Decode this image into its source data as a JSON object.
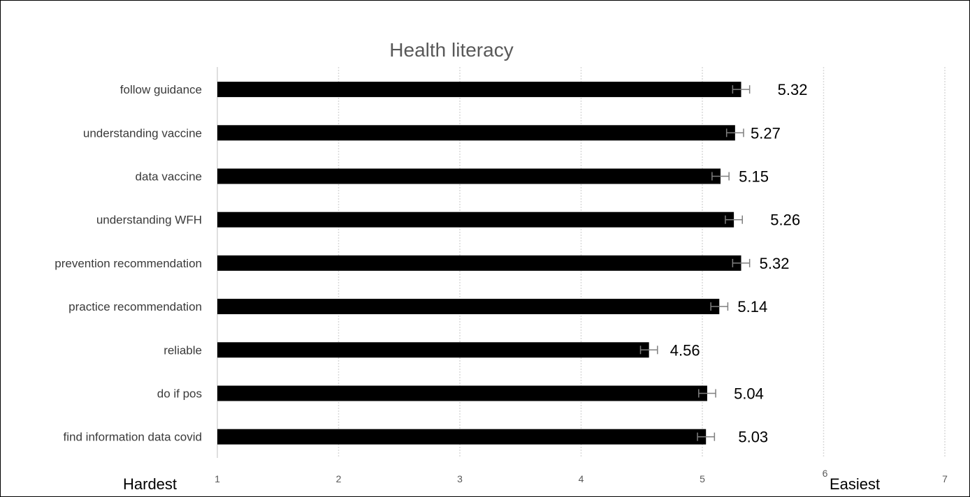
{
  "chart_data": {
    "type": "bar",
    "orientation": "horizontal",
    "title": "Health literacy",
    "categories": [
      "follow guidance",
      "understanding vaccine",
      "data vaccine",
      "understanding WFH",
      "prevention recommendation",
      "practice recommendation",
      "reliable",
      "do if pos",
      "find information data covid"
    ],
    "values": [
      5.32,
      5.27,
      5.15,
      5.26,
      5.32,
      5.14,
      4.56,
      5.04,
      5.03
    ],
    "value_labels": [
      "5.32",
      "5.27",
      "5.15",
      "5.26",
      "5.32",
      "5.14",
      "4.56",
      "5.04",
      "5.03"
    ],
    "error": [
      0.07,
      0.07,
      0.07,
      0.07,
      0.07,
      0.07,
      0.07,
      0.07,
      0.07
    ],
    "xlim": [
      1,
      7
    ],
    "xticks": [
      "1",
      "2",
      "3",
      "4",
      "5",
      "6",
      "7"
    ],
    "x_left_label": "Hardest",
    "x_right_label": "Easiest",
    "grid": "vertical",
    "bar_color": "#000000",
    "grid_color": "#d9d9d9"
  }
}
